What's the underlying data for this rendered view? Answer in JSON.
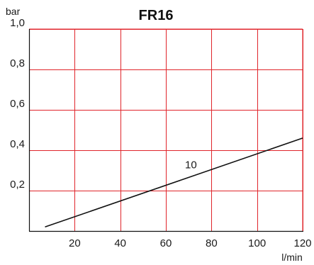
{
  "chart_data": {
    "type": "line",
    "title": "FR16",
    "ylabel": "bar",
    "xlabel": "l/min",
    "xlim": [
      0,
      120
    ],
    "ylim": [
      0,
      1.0
    ],
    "x_ticks": [
      20,
      40,
      60,
      80,
      100,
      120
    ],
    "x_tick_labels": [
      "20",
      "40",
      "60",
      "80",
      "100",
      "120"
    ],
    "y_ticks": [
      0.2,
      0.4,
      0.6,
      0.8,
      1.0
    ],
    "y_tick_labels": [
      "0,2",
      "0,4",
      "0,6",
      "0,8",
      "1,0"
    ],
    "grid": true,
    "grid_color": "#e0252b",
    "line_color": "#111111",
    "series": [
      {
        "name": "10",
        "x": [
          7,
          120
        ],
        "y": [
          0.02,
          0.46
        ]
      }
    ],
    "annotations": [
      {
        "text": "10",
        "x": 71,
        "y": 0.31
      }
    ]
  }
}
